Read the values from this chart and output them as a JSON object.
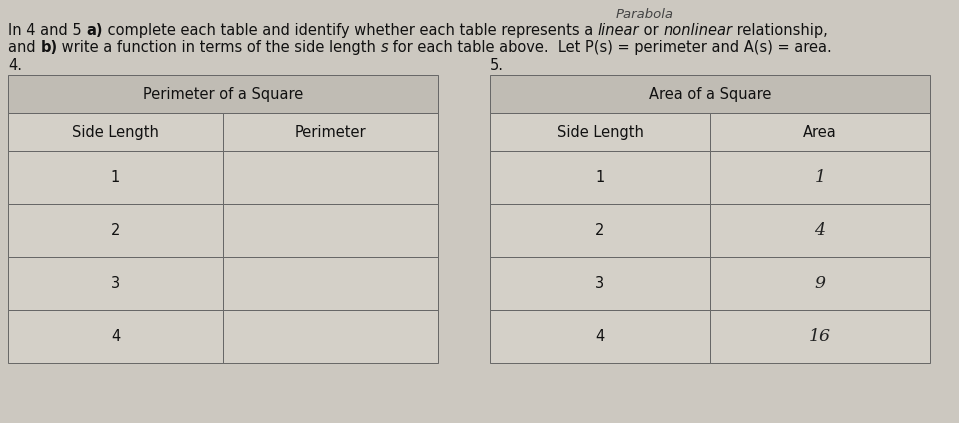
{
  "background_color": "#ccc8c0",
  "parabola_text": "Parabola",
  "line1_parts": [
    {
      "text": "In 4 and 5 ",
      "style": "normal",
      "weight": "normal"
    },
    {
      "text": "a)",
      "style": "normal",
      "weight": "bold"
    },
    {
      "text": " complete each table and identify whether each table represents a ",
      "style": "normal",
      "weight": "normal"
    },
    {
      "text": "linear",
      "style": "italic",
      "weight": "normal"
    },
    {
      "text": " or ",
      "style": "normal",
      "weight": "normal"
    },
    {
      "text": "nonlinear",
      "style": "italic",
      "weight": "normal"
    },
    {
      "text": " relationship,",
      "style": "normal",
      "weight": "normal"
    }
  ],
  "line2_parts": [
    {
      "text": "and ",
      "style": "normal",
      "weight": "normal"
    },
    {
      "text": "b)",
      "style": "normal",
      "weight": "bold"
    },
    {
      "text": " write a function in terms of the side length ",
      "style": "normal",
      "weight": "normal"
    },
    {
      "text": "s",
      "style": "italic",
      "weight": "normal"
    },
    {
      "text": " for each table above.  Let P(s) = perimeter and A(s) = area.",
      "style": "normal",
      "weight": "normal"
    }
  ],
  "label4": "4.",
  "label5": "5.",
  "table1_title": "Perimeter of a Square",
  "table1_col1": "Side Length",
  "table1_col2": "Perimeter",
  "table1_rows": [
    [
      "1",
      ""
    ],
    [
      "2",
      ""
    ],
    [
      "3",
      ""
    ],
    [
      "4",
      ""
    ]
  ],
  "table2_title": "Area of a Square",
  "table2_col1": "Side Length",
  "table2_col2": "Area",
  "table2_rows": [
    [
      "1",
      "1"
    ],
    [
      "2",
      "4"
    ],
    [
      "3",
      "9"
    ],
    [
      "4",
      "16"
    ]
  ],
  "font_size": 10.5,
  "table_bg": "#d4d0c8",
  "table_header_bg": "#c0bcb4",
  "line_color": "#666666",
  "text_color": "#111111"
}
